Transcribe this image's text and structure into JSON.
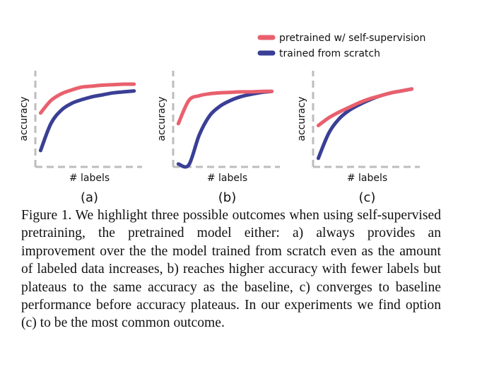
{
  "chart_data": [
    {
      "type": "line",
      "panel_label": "(a)",
      "xlabel": "# labels",
      "ylabel": "accuracy",
      "xlim": [
        0,
        1
      ],
      "ylim": [
        0,
        1
      ],
      "x": [
        0.05,
        0.15,
        0.25,
        0.35,
        0.45,
        0.55,
        0.65,
        0.75,
        0.85,
        0.95
      ],
      "series": [
        {
          "name": "pretrained w/ self-supervision",
          "color": "#e9606d",
          "values": [
            0.56,
            0.69,
            0.76,
            0.8,
            0.83,
            0.84,
            0.85,
            0.855,
            0.86,
            0.86
          ]
        },
        {
          "name": "trained from scratch",
          "color": "#3a3f95",
          "values": [
            0.17,
            0.45,
            0.59,
            0.66,
            0.7,
            0.73,
            0.75,
            0.77,
            0.78,
            0.79
          ]
        }
      ]
    },
    {
      "type": "line",
      "panel_label": "(b)",
      "xlabel": "# labels",
      "ylabel": "accuracy",
      "xlim": [
        0,
        1
      ],
      "ylim": [
        0,
        1
      ],
      "x": [
        0.05,
        0.15,
        0.25,
        0.35,
        0.45,
        0.55,
        0.65,
        0.75,
        0.85,
        0.95
      ],
      "series": [
        {
          "name": "pretrained w/ self-supervision",
          "color": "#e9606d",
          "values": [
            0.45,
            0.69,
            0.74,
            0.76,
            0.77,
            0.775,
            0.78,
            0.78,
            0.785,
            0.785
          ]
        },
        {
          "name": "trained from scratch",
          "color": "#3a3f95",
          "values": [
            0.03,
            0.02,
            0.33,
            0.53,
            0.63,
            0.69,
            0.73,
            0.755,
            0.775,
            0.785
          ]
        }
      ]
    },
    {
      "type": "line",
      "panel_label": "(c)",
      "xlabel": "# labels",
      "ylabel": "accuracy",
      "xlim": [
        0,
        1
      ],
      "ylim": [
        0,
        1
      ],
      "x": [
        0.05,
        0.15,
        0.25,
        0.35,
        0.45,
        0.55,
        0.65,
        0.75,
        0.85,
        0.95
      ],
      "series": [
        {
          "name": "pretrained w/ self-supervision",
          "color": "#e9606d",
          "values": [
            0.43,
            0.51,
            0.57,
            0.62,
            0.67,
            0.71,
            0.74,
            0.77,
            0.79,
            0.81
          ]
        },
        {
          "name": "trained from scratch",
          "color": "#3a3f95",
          "values": [
            0.09,
            0.35,
            0.5,
            0.59,
            0.65,
            0.7,
            0.74,
            0.77,
            0.79,
            0.81
          ]
        }
      ]
    }
  ],
  "legend": [
    {
      "label": "pretrained w/ self-supervision",
      "color": "#e9606d"
    },
    {
      "label": "trained from scratch",
      "color": "#3a3f95"
    }
  ],
  "caption": "Figure 1. We highlight three possible outcomes when using self-supervised pretraining, the pretrained model either: a) always provides an improvement over the the model trained from scratch even as the amount of labeled data increases, b) reaches higher accuracy with fewer labels but plateaus to the same accuracy as the baseline, c) converges to baseline performance before accuracy plateaus. In our experiments we find option (c) to be the most common outcome."
}
